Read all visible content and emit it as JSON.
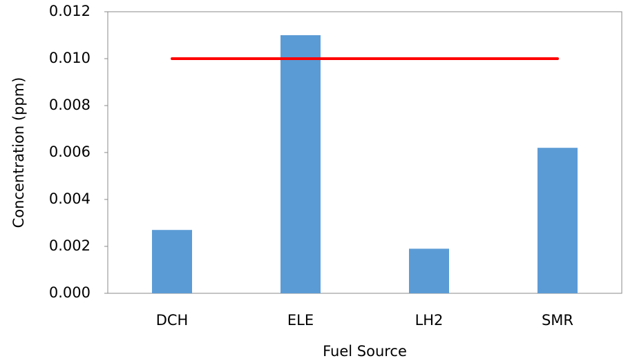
{
  "chart_data": {
    "type": "bar",
    "x_label": "Fuel Source",
    "y_label": "Concentration (ppm)",
    "categories": [
      "DCH",
      "ELE",
      "LH2",
      "SMR"
    ],
    "series": [
      {
        "type": "bar",
        "color": "#5b9bd5",
        "values": [
          0.0027,
          0.011,
          0.0019,
          0.0062
        ]
      },
      {
        "type": "line",
        "color": "#ff0000",
        "values": [
          0.01,
          0.01,
          0.01,
          0.01
        ]
      }
    ],
    "ylim": [
      0,
      0.012
    ],
    "yticks": [
      {
        "value": 0,
        "label": "0.000"
      },
      {
        "value": 0.002,
        "label": "0.002"
      },
      {
        "value": 0.004,
        "label": "0.004"
      },
      {
        "value": 0.006,
        "label": "0.006"
      },
      {
        "value": 0.008,
        "label": "0.008"
      },
      {
        "value": 0.01,
        "label": "0.010"
      },
      {
        "value": 0.012,
        "label": "0.012"
      }
    ],
    "grid": false
  }
}
